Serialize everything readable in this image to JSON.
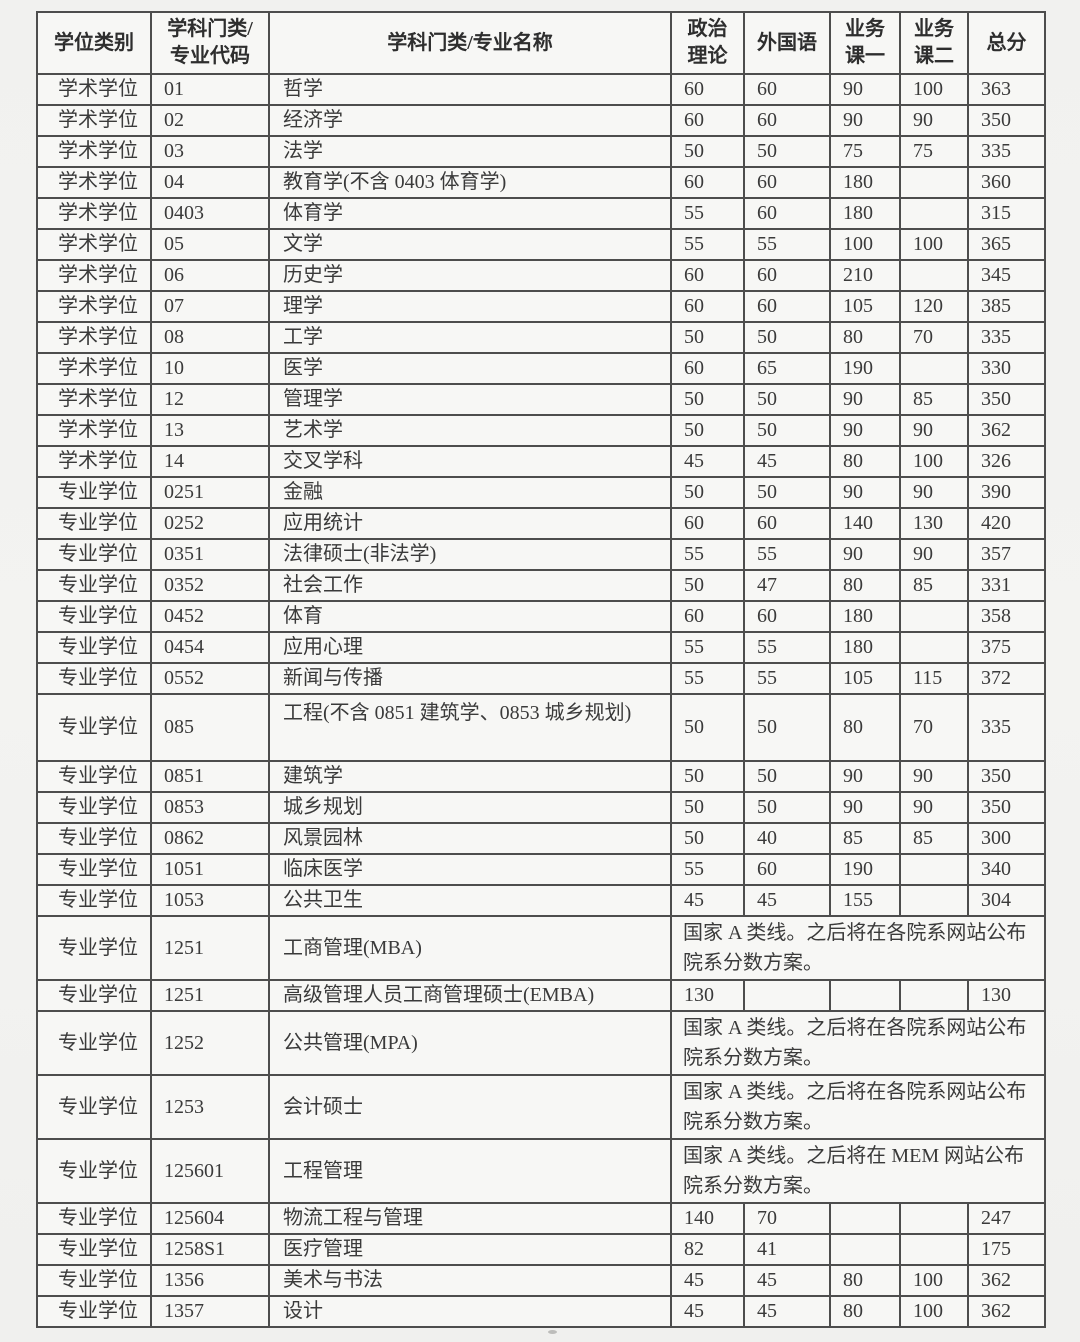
{
  "table": {
    "header": {
      "degree": "学位类别",
      "code_line1": "学科门类/",
      "code_line2": "专业代码",
      "name": "学科门类/专业名称",
      "politics_line1": "政治",
      "politics_line2": "理论",
      "foreign": "外国语",
      "course1_line1": "业务",
      "course1_line2": "课一",
      "course2_line1": "业务",
      "course2_line2": "课二",
      "total": "总分"
    },
    "rows": [
      {
        "degree": "学术学位",
        "code": "01",
        "name": "哲学",
        "politics": "60",
        "foreign": "60",
        "course1": "90",
        "course2": "100",
        "total": "363"
      },
      {
        "degree": "学术学位",
        "code": "02",
        "name": "经济学",
        "politics": "60",
        "foreign": "60",
        "course1": "90",
        "course2": "90",
        "total": "350"
      },
      {
        "degree": "学术学位",
        "code": "03",
        "name": "法学",
        "politics": "50",
        "foreign": "50",
        "course1": "75",
        "course2": "75",
        "total": "335"
      },
      {
        "degree": "学术学位",
        "code": "04",
        "name": "教育学(不含 0403 体育学)",
        "politics": "60",
        "foreign": "60",
        "course1": "180",
        "course2": "",
        "total": "360"
      },
      {
        "degree": "学术学位",
        "code": "0403",
        "name": "体育学",
        "politics": "55",
        "foreign": "60",
        "course1": "180",
        "course2": "",
        "total": "315"
      },
      {
        "degree": "学术学位",
        "code": "05",
        "name": "文学",
        "politics": "55",
        "foreign": "55",
        "course1": "100",
        "course2": "100",
        "total": "365"
      },
      {
        "degree": "学术学位",
        "code": "06",
        "name": "历史学",
        "politics": "60",
        "foreign": "60",
        "course1": "210",
        "course2": "",
        "total": "345"
      },
      {
        "degree": "学术学位",
        "code": "07",
        "name": "理学",
        "politics": "60",
        "foreign": "60",
        "course1": "105",
        "course2": "120",
        "total": "385"
      },
      {
        "degree": "学术学位",
        "code": "08",
        "name": "工学",
        "politics": "50",
        "foreign": "50",
        "course1": "80",
        "course2": "70",
        "total": "335"
      },
      {
        "degree": "学术学位",
        "code": "10",
        "name": "医学",
        "politics": "60",
        "foreign": "65",
        "course1": "190",
        "course2": "",
        "total": "330"
      },
      {
        "degree": "学术学位",
        "code": "12",
        "name": "管理学",
        "politics": "50",
        "foreign": "50",
        "course1": "90",
        "course2": "85",
        "total": "350"
      },
      {
        "degree": "学术学位",
        "code": "13",
        "name": "艺术学",
        "politics": "50",
        "foreign": "50",
        "course1": "90",
        "course2": "90",
        "total": "362"
      },
      {
        "degree": "学术学位",
        "code": "14",
        "name": "交叉学科",
        "politics": "45",
        "foreign": "45",
        "course1": "80",
        "course2": "100",
        "total": "326"
      },
      {
        "degree": "专业学位",
        "code": "0251",
        "name": "金融",
        "politics": "50",
        "foreign": "50",
        "course1": "90",
        "course2": "90",
        "total": "390"
      },
      {
        "degree": "专业学位",
        "code": "0252",
        "name": "应用统计",
        "politics": "60",
        "foreign": "60",
        "course1": "140",
        "course2": "130",
        "total": "420"
      },
      {
        "degree": "专业学位",
        "code": "0351",
        "name": "法律硕士(非法学)",
        "politics": "55",
        "foreign": "55",
        "course1": "90",
        "course2": "90",
        "total": "357"
      },
      {
        "degree": "专业学位",
        "code": "0352",
        "name": "社会工作",
        "politics": "50",
        "foreign": "47",
        "course1": "80",
        "course2": "85",
        "total": "331"
      },
      {
        "degree": "专业学位",
        "code": "0452",
        "name": "体育",
        "politics": "60",
        "foreign": "60",
        "course1": "180",
        "course2": "",
        "total": "358"
      },
      {
        "degree": "专业学位",
        "code": "0454",
        "name": "应用心理",
        "politics": "55",
        "foreign": "55",
        "course1": "180",
        "course2": "",
        "total": "375"
      },
      {
        "degree": "专业学位",
        "code": "0552",
        "name": "新闻与传播",
        "politics": "55",
        "foreign": "55",
        "course1": "105",
        "course2": "115",
        "total": "372"
      },
      {
        "degree": "专业学位",
        "code": "085",
        "name": "工程(不含 0851 建筑学、0853 城乡规划)",
        "politics": "50",
        "foreign": "50",
        "course1": "80",
        "course2": "70",
        "total": "335",
        "tall": true,
        "name_top": true
      },
      {
        "degree": "专业学位",
        "code": "0851",
        "name": "建筑学",
        "politics": "50",
        "foreign": "50",
        "course1": "90",
        "course2": "90",
        "total": "350"
      },
      {
        "degree": "专业学位",
        "code": "0853",
        "name": "城乡规划",
        "politics": "50",
        "foreign": "50",
        "course1": "90",
        "course2": "90",
        "total": "350"
      },
      {
        "degree": "专业学位",
        "code": "0862",
        "name": "风景园林",
        "politics": "50",
        "foreign": "40",
        "course1": "85",
        "course2": "85",
        "total": "300"
      },
      {
        "degree": "专业学位",
        "code": "1051",
        "name": "临床医学",
        "politics": "55",
        "foreign": "60",
        "course1": "190",
        "course2": "",
        "total": "340"
      },
      {
        "degree": "专业学位",
        "code": "1053",
        "name": "公共卫生",
        "politics": "45",
        "foreign": "45",
        "course1": "155",
        "course2": "",
        "total": "304"
      },
      {
        "degree": "专业学位",
        "code": "1251",
        "name": "工商管理(MBA)",
        "span": "国家 A 类线。之后将在各院系网站公布院系分数方案。",
        "tall": true
      },
      {
        "degree": "专业学位",
        "code": "1251",
        "name": "高级管理人员工商管理硕士(EMBA)",
        "politics": "130",
        "foreign": "",
        "course1": "",
        "course2": "",
        "total": "130"
      },
      {
        "degree": "专业学位",
        "code": "1252",
        "name": "公共管理(MPA)",
        "span": "国家 A 类线。之后将在各院系网站公布院系分数方案。",
        "tall": true
      },
      {
        "degree": "专业学位",
        "code": "1253",
        "name": "会计硕士",
        "span": "国家 A 类线。之后将在各院系网站公布院系分数方案。",
        "tall": true
      },
      {
        "degree": "专业学位",
        "code": "125601",
        "name": "工程管理",
        "span": "国家 A 类线。之后将在 MEM 网站公布院系分数方案。",
        "tall": true
      },
      {
        "degree": "专业学位",
        "code": "125604",
        "name": "物流工程与管理",
        "politics": "140",
        "foreign": "70",
        "course1": "",
        "course2": "",
        "total": "247"
      },
      {
        "degree": "专业学位",
        "code": "1258S1",
        "name": "医疗管理",
        "politics": "82",
        "foreign": "41",
        "course1": "",
        "course2": "",
        "total": "175"
      },
      {
        "degree": "专业学位",
        "code": "1356",
        "name": "美术与书法",
        "politics": "45",
        "foreign": "45",
        "course1": "80",
        "course2": "100",
        "total": "362"
      },
      {
        "degree": "专业学位",
        "code": "1357",
        "name": "设计",
        "politics": "45",
        "foreign": "45",
        "course1": "80",
        "course2": "100",
        "total": "362"
      }
    ]
  }
}
